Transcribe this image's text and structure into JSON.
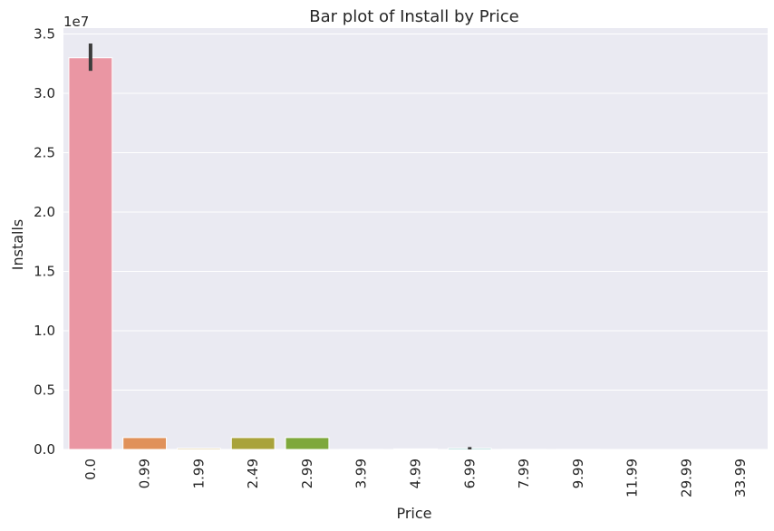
{
  "chart_data": {
    "type": "bar",
    "title": "Bar plot of Install by Price",
    "xlabel": "Price",
    "ylabel": "Installs",
    "y_offset_label": "1e7",
    "y_scale_factor": 10000000,
    "ylim": [
      0,
      35500000.0
    ],
    "yticks": [
      0,
      5000000,
      10000000,
      15000000,
      20000000,
      25000000,
      30000000,
      35000000
    ],
    "ytick_labels": [
      "0.0",
      "0.5",
      "1.0",
      "1.5",
      "2.0",
      "2.5",
      "3.0",
      "3.5"
    ],
    "grid": true,
    "categories": [
      "0.0",
      "0.99",
      "1.99",
      "2.49",
      "2.99",
      "3.99",
      "4.99",
      "6.99",
      "7.99",
      "9.99",
      "11.99",
      "29.99",
      "33.99"
    ],
    "values": [
      33000000,
      1000000,
      100000,
      1000000,
      1000000,
      10000,
      50000,
      100000,
      10000,
      10000,
      1000,
      1000,
      1000
    ],
    "error_bars": [
      {
        "category": "0.0",
        "low": 31900000,
        "high": 34200000
      },
      {
        "category": "6.99",
        "low": 0,
        "high": 200000
      }
    ],
    "colors": [
      "#ea96a3",
      "#e0915a",
      "#c8a24b",
      "#a9a33b",
      "#7ea83c",
      "#3fae5d",
      "#42ab8f",
      "#45a6a9",
      "#49a3c2",
      "#7e97e6",
      "#b389e5",
      "#e07dd6",
      "#e88ab5"
    ],
    "background": "#eaeaf2",
    "grid_color": "#ffffff"
  }
}
